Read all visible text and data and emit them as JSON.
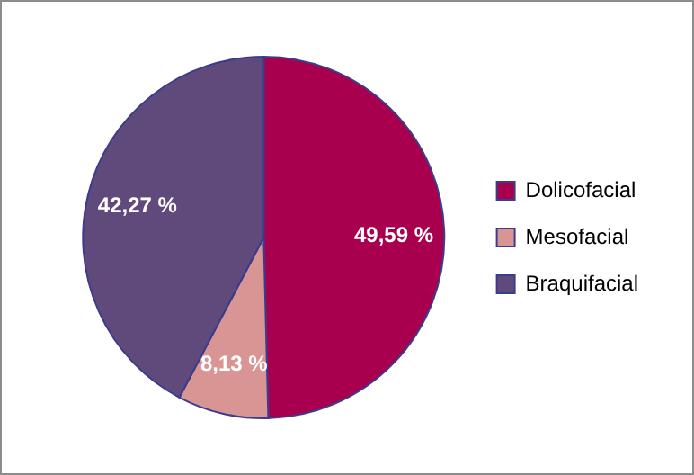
{
  "chart_data": {
    "type": "pie",
    "categories": [
      "Dolicofacial",
      "Mesofacial",
      "Braquifacial"
    ],
    "values": [
      49.59,
      8.13,
      42.27
    ],
    "colors": [
      "#a8004f",
      "#d99594",
      "#604a7b"
    ],
    "value_labels": [
      "49,59 %",
      "8,13 %",
      "42,27 %"
    ],
    "legend": "right"
  }
}
